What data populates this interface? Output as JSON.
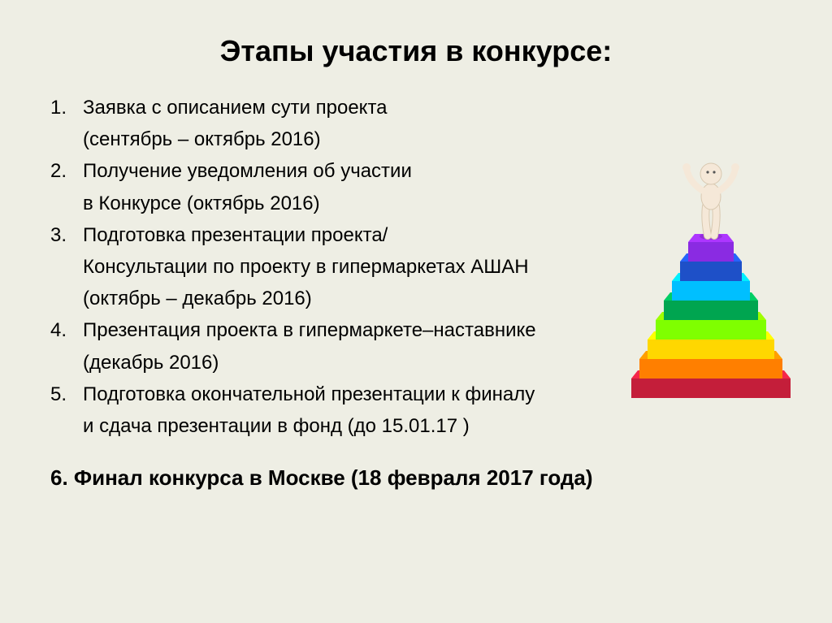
{
  "title": "Этапы участия в конкурсе:",
  "items": [
    {
      "num": "1.",
      "line1": " Заявка с описанием сути проекта",
      "line2": "(сентябрь – октябрь 2016)"
    },
    {
      "num": "2.",
      "line1": "Получение уведомления об участии",
      "line2": "в Конкурсе  (октябрь 2016)"
    },
    {
      "num": "3.",
      "line1": "Подготовка презентации проекта/",
      "line2": "Консультации по проекту в гипермаркетах АШАН",
      "line3": "(октябрь – декабрь 2016)"
    },
    {
      "num": "4.",
      "line1": "Презентация проекта в гипермаркете–наставнике",
      "line2": "(декабрь 2016)"
    },
    {
      "num": "5.",
      "line1": "Подготовка окончательной презентации к финалу",
      "line2": "и сдача презентации в фонд (до 15.01.17 )"
    }
  ],
  "final": "6.  Финал конкурса в Москве (18 февраля 2017 года)",
  "stairs": {
    "colors": [
      "#c41e3a",
      "#ff7f00",
      "#ffd700",
      "#7fff00",
      "#00a550",
      "#00bfff",
      "#1e50c8",
      "#8a2be2"
    ],
    "figure_color": "#f5e8d8",
    "figure_stroke": "#d8c8b0"
  }
}
